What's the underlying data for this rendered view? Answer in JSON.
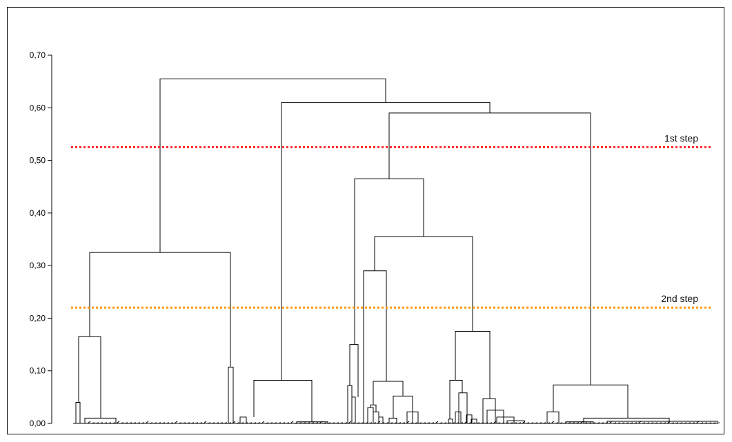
{
  "chart_data": {
    "type": "dendrogram",
    "title": "",
    "xlabel": "",
    "ylabel": "",
    "ylim": [
      0,
      0.7
    ],
    "y_ticks": [
      "0,00",
      "0,10",
      "0,20",
      "0,30",
      "0,40",
      "0,50",
      "0,60",
      "0,70"
    ],
    "y_tick_values": [
      0,
      0.1,
      0.2,
      0.3,
      0.4,
      0.5,
      0.6,
      0.7
    ],
    "grid": false,
    "threshold_lines": [
      {
        "label": "1st step",
        "value": 0.525,
        "color": "#ff2a2a"
      },
      {
        "label": "2nd step",
        "value": 0.22,
        "color": "#ff9900"
      }
    ],
    "top_merges": [
      {
        "height": 0.655
      },
      {
        "height": 0.61
      },
      {
        "height": 0.59
      },
      {
        "height": 0.465
      },
      {
        "height": 0.355
      },
      {
        "height": 0.325
      },
      {
        "height": 0.29
      },
      {
        "height": 0.175
      },
      {
        "height": 0.165
      },
      {
        "height": 0.15
      },
      {
        "height": 0.107
      },
      {
        "height": 0.082
      },
      {
        "height": 0.08
      },
      {
        "height": 0.078
      },
      {
        "height": 0.073
      }
    ]
  }
}
